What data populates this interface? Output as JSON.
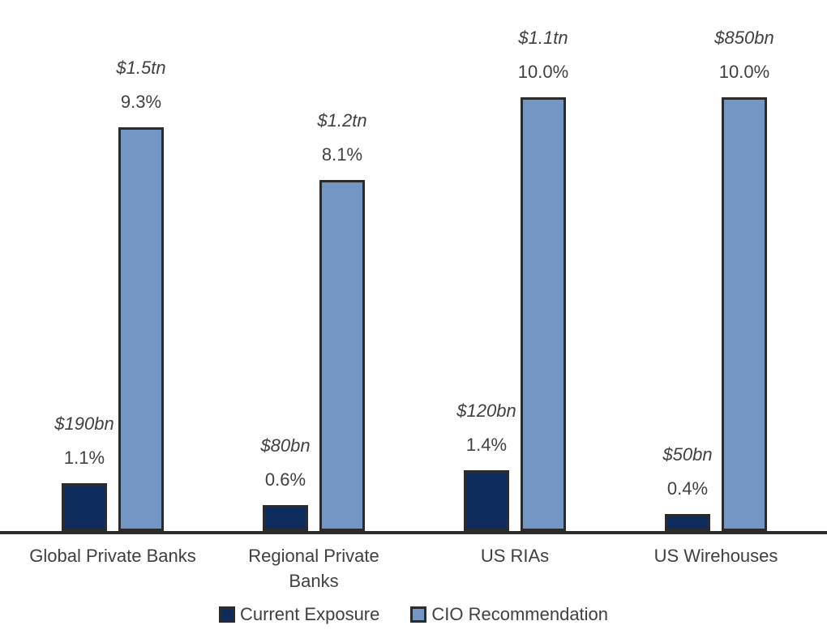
{
  "chart_data": {
    "type": "bar",
    "title": "",
    "xlabel": "",
    "ylabel": "",
    "grid": false,
    "legend_position": "bottom",
    "ylim": [
      0,
      10
    ],
    "categories": [
      "Global Private Banks",
      "Regional Private\nBanks",
      "US RIAs",
      "US Wirehouses"
    ],
    "series": [
      {
        "name": "Current Exposure",
        "color": "#0d2b5c",
        "points": [
          {
            "amount": "$190bn",
            "pct_label": "1.1%",
            "pct": 1.1
          },
          {
            "amount": "$80bn",
            "pct_label": "0.6%",
            "pct": 0.6
          },
          {
            "amount": "$120bn",
            "pct_label": "1.4%",
            "pct": 1.4
          },
          {
            "amount": "$50bn",
            "pct_label": "0.4%",
            "pct": 0.4
          }
        ]
      },
      {
        "name": "CIO Recommendation",
        "color": "#7496c4",
        "points": [
          {
            "amount": "$1.5tn",
            "pct_label": "9.3%",
            "pct": 9.3
          },
          {
            "amount": "$1.2tn",
            "pct_label": "8.1%",
            "pct": 8.1
          },
          {
            "amount": "$1.1tn",
            "pct_label": "10.0%",
            "pct": 10.0
          },
          {
            "amount": "$850bn",
            "pct_label": "10.0%",
            "pct": 10.0
          }
        ]
      }
    ]
  },
  "style": {
    "bar_border_color": "#2b2b2b",
    "axis_color": "#2b2b2b",
    "text_color": "#404040"
  }
}
